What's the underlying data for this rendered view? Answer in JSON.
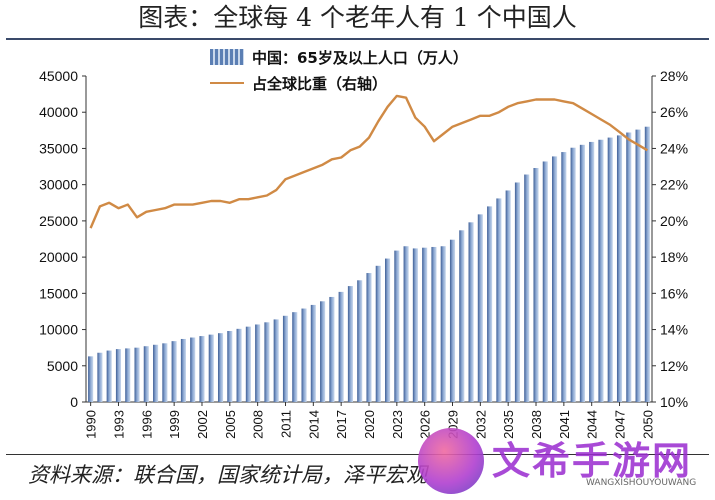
{
  "header": {
    "title": "图表：全球每 4 个老年人有 1 个中国人"
  },
  "footer": {
    "source": "资料来源：联合国，国家统计局，泽平宏观"
  },
  "watermark": {
    "text": "文希手游网",
    "sub": "WANGXISHOUYOUWANG"
  },
  "colors": {
    "bar": "#5b7fb4",
    "line": "#d08a45"
  },
  "chart_data": {
    "type": "bar",
    "x_ticks": [
      "1990",
      "1993",
      "1996",
      "1999",
      "2002",
      "2005",
      "2008",
      "2011",
      "2014",
      "2017",
      "2020",
      "2023",
      "2026",
      "2029",
      "2032",
      "2035",
      "2038",
      "2041",
      "2044",
      "2047",
      "2050"
    ],
    "y_left": {
      "range": [
        0,
        45000
      ],
      "ticks": [
        "0",
        "5000",
        "10000",
        "15000",
        "20000",
        "25000",
        "30000",
        "35000",
        "40000",
        "45000"
      ]
    },
    "y_right": {
      "range": [
        10,
        28
      ],
      "ticks": [
        "10%",
        "12%",
        "14%",
        "16%",
        "18%",
        "20%",
        "22%",
        "24%",
        "26%",
        "28%"
      ]
    },
    "series": [
      {
        "name": "中国：65岁及以上人口（万人）",
        "type": "bar",
        "axis": "left",
        "x": [
          1990,
          1991,
          1992,
          1993,
          1994,
          1995,
          1996,
          1997,
          1998,
          1999,
          2000,
          2001,
          2002,
          2003,
          2004,
          2005,
          2006,
          2007,
          2008,
          2009,
          2010,
          2011,
          2012,
          2013,
          2014,
          2015,
          2016,
          2017,
          2018,
          2019,
          2020,
          2021,
          2022,
          2023,
          2024,
          2025,
          2026,
          2027,
          2028,
          2029,
          2030,
          2031,
          2032,
          2033,
          2034,
          2035,
          2036,
          2037,
          2038,
          2039,
          2040,
          2041,
          2042,
          2043,
          2044,
          2045,
          2046,
          2047,
          2048,
          2049,
          2050
        ],
        "values": [
          6300,
          6800,
          7100,
          7300,
          7400,
          7500,
          7700,
          7900,
          8100,
          8400,
          8700,
          8900,
          9100,
          9300,
          9500,
          9800,
          10100,
          10400,
          10700,
          11000,
          11400,
          11900,
          12400,
          12900,
          13400,
          13900,
          14500,
          15200,
          16000,
          16800,
          17800,
          18800,
          19800,
          20900,
          21500,
          21200,
          21300,
          21400,
          21500,
          22400,
          23700,
          24800,
          25900,
          27000,
          28100,
          29200,
          30300,
          31400,
          32300,
          33200,
          33900,
          34500,
          35100,
          35500,
          35900,
          36200,
          36500,
          36800,
          37200,
          37600,
          38000
        ]
      },
      {
        "name": "占全球比重（右轴）",
        "type": "line",
        "axis": "right",
        "x": [
          1990,
          1991,
          1992,
          1993,
          1994,
          1995,
          1996,
          1997,
          1998,
          1999,
          2000,
          2001,
          2002,
          2003,
          2004,
          2005,
          2006,
          2007,
          2008,
          2009,
          2010,
          2011,
          2012,
          2013,
          2014,
          2015,
          2016,
          2017,
          2018,
          2019,
          2020,
          2021,
          2022,
          2023,
          2024,
          2025,
          2026,
          2027,
          2028,
          2029,
          2030,
          2031,
          2032,
          2033,
          2034,
          2035,
          2036,
          2037,
          2038,
          2039,
          2040,
          2041,
          2042,
          2043,
          2044,
          2045,
          2046,
          2047,
          2048,
          2049,
          2050
        ],
        "values": [
          19.6,
          20.8,
          21.0,
          20.7,
          20.9,
          20.2,
          20.5,
          20.6,
          20.7,
          20.9,
          20.9,
          20.9,
          21.0,
          21.1,
          21.1,
          21.0,
          21.2,
          21.2,
          21.3,
          21.4,
          21.7,
          22.3,
          22.5,
          22.7,
          22.9,
          23.1,
          23.4,
          23.5,
          23.9,
          24.1,
          24.6,
          25.5,
          26.3,
          26.9,
          26.8,
          25.7,
          25.2,
          24.4,
          24.8,
          25.2,
          25.4,
          25.6,
          25.8,
          25.8,
          26.0,
          26.3,
          26.5,
          26.6,
          26.7,
          26.7,
          26.7,
          26.6,
          26.5,
          26.2,
          25.9,
          25.6,
          25.3,
          24.9,
          24.5,
          24.2,
          23.9
        ]
      }
    ]
  }
}
